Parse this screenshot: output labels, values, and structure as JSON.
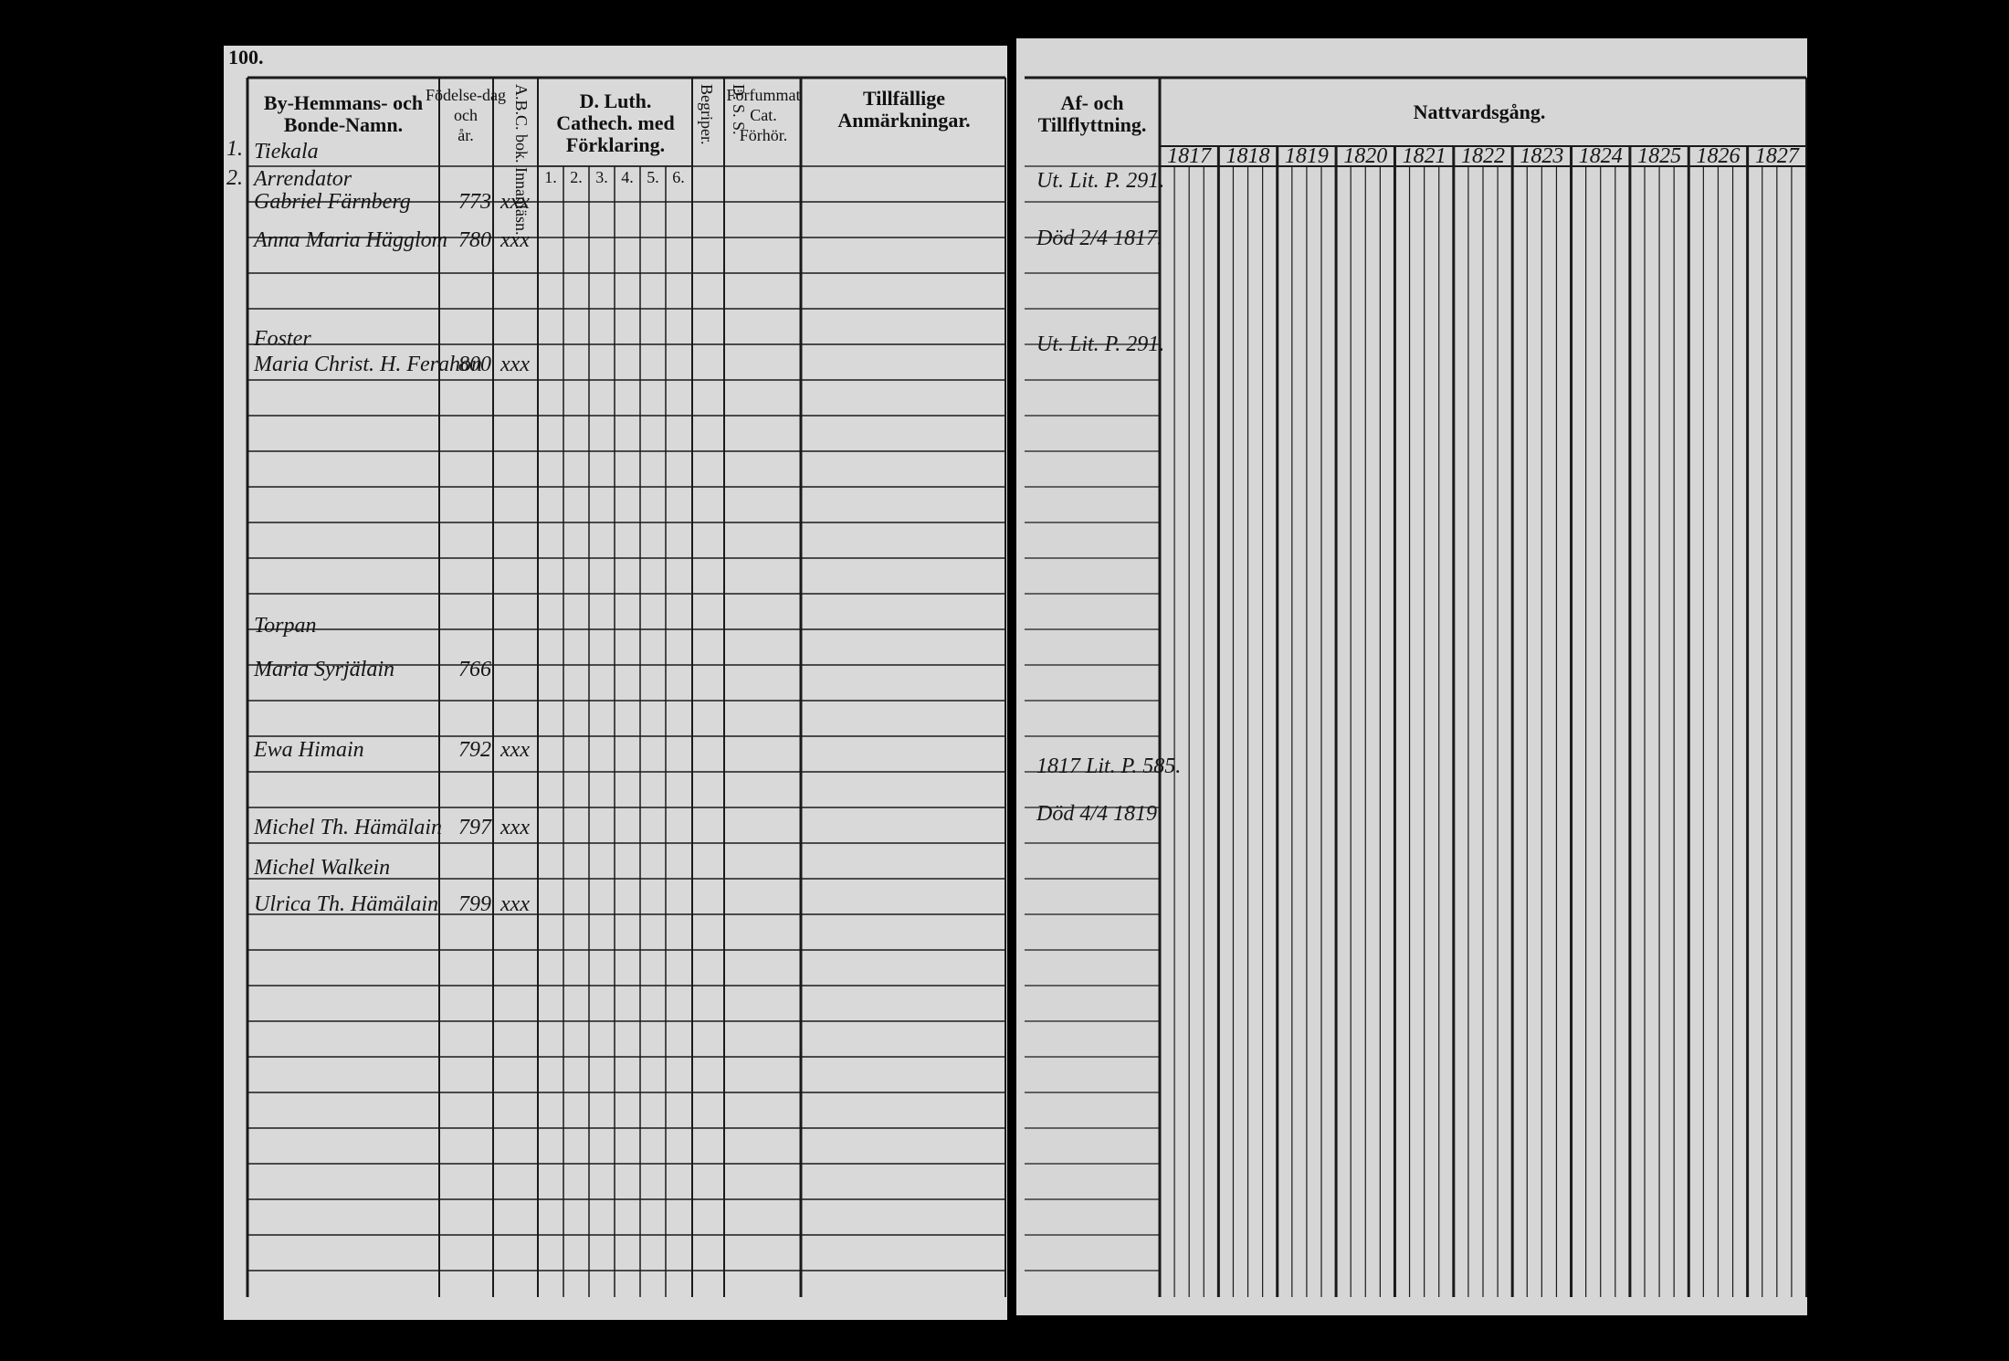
{
  "page_number": "100.",
  "left_headers": {
    "name": "By-Hemmans- och Bonde-Namn.",
    "birth": "Födelse-dag och år.",
    "abc": "A.B.C. bok. Innanläsn.",
    "catechism": "D. Luth. Cathech. med Förklaring.",
    "catechism_parts": [
      "1.",
      "2.",
      "3.",
      "4.",
      "5.",
      "6."
    ],
    "understands": "Begriper.",
    "dss": "D. S. S.",
    "missed": "Förfummat Cat. Förhör.",
    "remarks": "Tillfällige Anmärkningar."
  },
  "right_headers": {
    "moving": "Af- och Tillflyttning.",
    "communion": "Nattvardsgång.",
    "years": [
      "1817",
      "1818",
      "1819",
      "1820",
      "1821",
      "1822",
      "1823",
      "1824",
      "1825",
      "1826",
      "1827"
    ]
  },
  "margin_numbers": [
    "1.",
    "2."
  ],
  "rows": [
    {
      "name": "Tiekala"
    },
    {
      "name": "Arrendator"
    },
    {
      "name": "Gabriel Färnberg",
      "born": "773",
      "abc": "xxx"
    },
    {
      "name": "Anna Maria Hägglom",
      "born": "780",
      "abc": "xxx"
    },
    {
      "name": "Foster"
    },
    {
      "name": "Maria Christ. H. Ferahon",
      "born": "800",
      "abc": "xxx"
    },
    {
      "name": "Torpan"
    },
    {
      "name": "Maria Syrjälain",
      "born": "766"
    },
    {
      "name": "Ewa Himain",
      "born": "792",
      "abc": "xxx"
    },
    {
      "name": "Michel Th. Hämälain",
      "born": "797",
      "abc": "xxx"
    },
    {
      "name": "Michel Walkein"
    },
    {
      "name": "Ulrica Th. Hämälain",
      "born": "799",
      "abc": "xxx"
    }
  ],
  "moving_notes": [
    "Ut. Lit. P. 291.",
    "Död 2/4 1817.",
    "Ut. Lit. P. 291.",
    "1817 Lit. P. 585.",
    "Död 4/4 1819"
  ]
}
